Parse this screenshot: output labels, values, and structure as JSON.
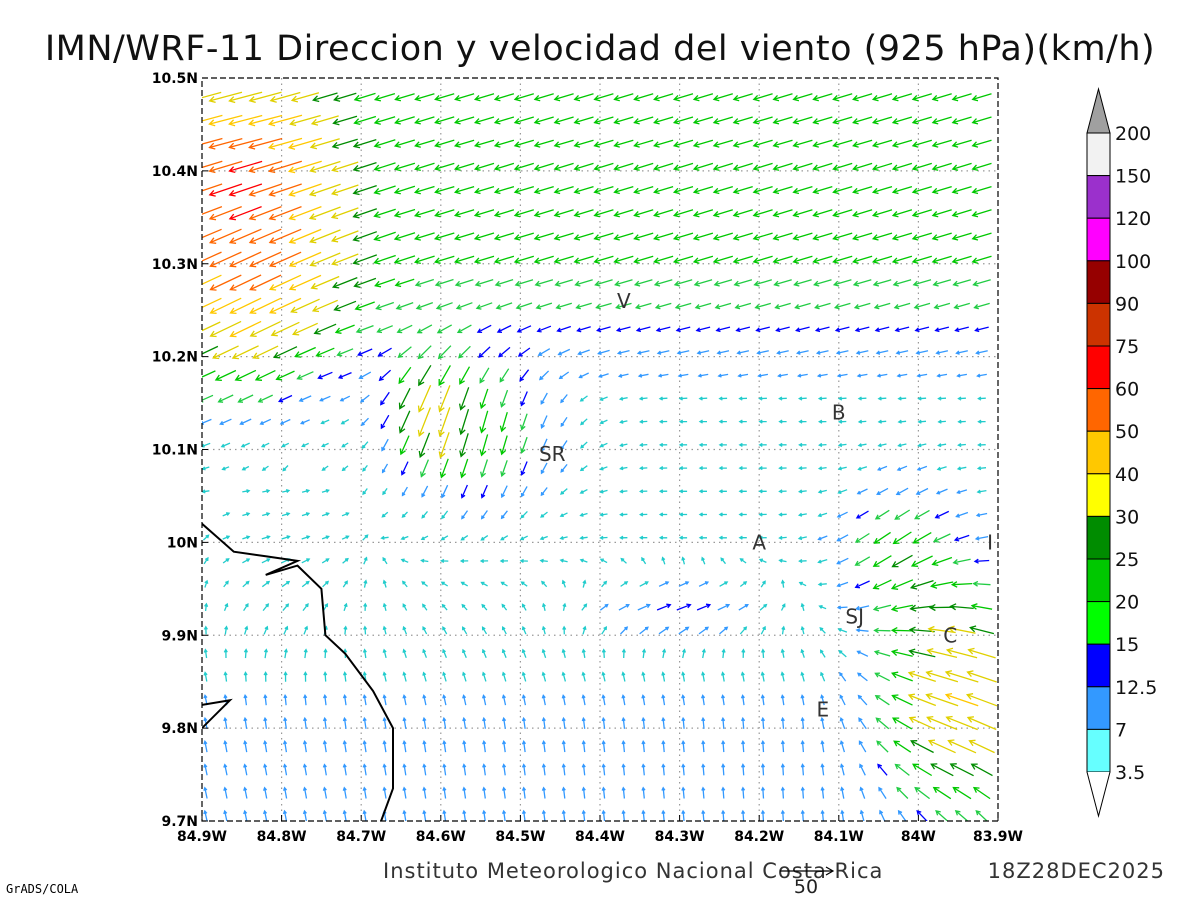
{
  "title": "IMN/WRF-11 Direccion y velocidad del viento (925 hPa)(km/h)",
  "footer": "Instituto Meteorologico Nacional Costa Rica",
  "valid_time": "18Z28DEC2025",
  "credit": "GrADS/COLA",
  "reference_vector": {
    "label": "50",
    "value": 50
  },
  "map": {
    "lon_range": [
      -84.9,
      -83.9
    ],
    "lat_range": [
      9.7,
      10.5
    ],
    "lon_ticks": [
      "84.9W",
      "84.8W",
      "84.7W",
      "84.6W",
      "84.5W",
      "84.4W",
      "84.3W",
      "84.2W",
      "84.1W",
      "84W",
      "83.9W"
    ],
    "lat_ticks": [
      "9.7N",
      "9.8N",
      "9.9N",
      "10N",
      "10.1N",
      "10.2N",
      "10.3N",
      "10.4N",
      "10.5N"
    ],
    "grid": "dotted",
    "places": [
      {
        "label": "V",
        "lon": -84.37,
        "lat": 10.26
      },
      {
        "label": "SR",
        "lon": -84.46,
        "lat": 10.095
      },
      {
        "label": "B",
        "lon": -84.1,
        "lat": 10.14
      },
      {
        "label": "A",
        "lon": -84.2,
        "lat": 10.0
      },
      {
        "label": "SJ",
        "lon": -84.08,
        "lat": 9.92
      },
      {
        "label": "C",
        "lon": -83.96,
        "lat": 9.9
      },
      {
        "label": "E",
        "lon": -84.12,
        "lat": 9.82
      },
      {
        "label": "I",
        "lon": -83.91,
        "lat": 10.0
      }
    ],
    "coastline": [
      [
        -84.9,
        10.02
      ],
      [
        -84.86,
        9.99
      ],
      [
        -84.82,
        9.985
      ],
      [
        -84.78,
        9.98
      ],
      [
        -84.82,
        9.965
      ],
      [
        -84.78,
        9.975
      ],
      [
        -84.75,
        9.95
      ],
      [
        -84.745,
        9.9
      ],
      [
        -84.72,
        9.88
      ],
      [
        -84.685,
        9.84
      ],
      [
        -84.66,
        9.8
      ],
      [
        -84.66,
        9.735
      ],
      [
        -84.675,
        9.7
      ]
    ],
    "coastline_islet": [
      [
        -84.9,
        9.825
      ],
      [
        -84.865,
        9.83
      ],
      [
        -84.9,
        9.8
      ]
    ]
  },
  "colorbar": {
    "labels": [
      "200",
      "150",
      "120",
      "100",
      "90",
      "75",
      "60",
      "50",
      "40",
      "30",
      "25",
      "20",
      "15",
      "12.5",
      "7",
      "3.5"
    ],
    "colors": [
      "#a0a0a0",
      "#f2f2f2",
      "#9b30cc",
      "#ff00ff",
      "#960000",
      "#cc3300",
      "#ff0000",
      "#ff6600",
      "#ffc800",
      "#ffff00",
      "#008c00",
      "#00c800",
      "#00ff00",
      "#0000ff",
      "#3399ff",
      "#66ffff"
    ]
  }
}
